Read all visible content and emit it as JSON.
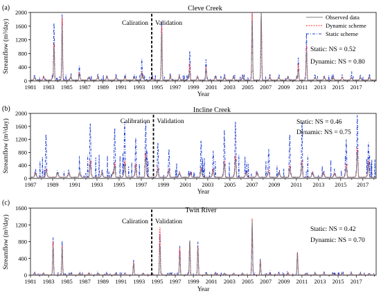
{
  "chart_data": [
    {
      "type": "line",
      "panel_letter": "(a)",
      "title": "Cleve Creek",
      "xlabel": "Year",
      "ylabel": "Streamflow (m³/day)",
      "ylim": [
        0,
        2000
      ],
      "yticks": [
        0,
        400,
        800,
        1200,
        1600,
        2000
      ],
      "xlim": [
        1981,
        2019.2
      ],
      "xticks": [
        1981,
        1983,
        1985,
        1987,
        1989,
        1991,
        1993,
        1995,
        1997,
        1999,
        2001,
        2003,
        2005,
        2007,
        2009,
        2011,
        2013,
        2015,
        2017
      ],
      "divider_year": 1994.4,
      "calibration_label": "Caliration",
      "validation_label": "Validation",
      "annotations": [
        "Static: NS = 0.52",
        "Dynamic: NS = 0.80"
      ],
      "legend": {
        "position": "top-right",
        "entries": [
          "Observed data",
          "Dynamic scheme",
          "Static scheme"
        ]
      },
      "base_flow": 40,
      "peaks": [
        {
          "x": 1983.6,
          "observed": 1000,
          "dynamic": 1120,
          "static": 1750
        },
        {
          "x": 1984.5,
          "observed": 1600,
          "dynamic": 1850,
          "static": 1950
        },
        {
          "x": 1986.4,
          "observed": 200,
          "dynamic": 260,
          "static": 450
        },
        {
          "x": 1993.3,
          "observed": 240,
          "dynamic": 280,
          "static": 650
        },
        {
          "x": 1995.5,
          "observed": 1400,
          "dynamic": 1600,
          "static": 1750
        },
        {
          "x": 1998.6,
          "observed": 300,
          "dynamic": 500,
          "static": 900
        },
        {
          "x": 2000.4,
          "observed": 350,
          "dynamic": 420,
          "static": 650
        },
        {
          "x": 2005.5,
          "observed": 1800,
          "dynamic": 2000,
          "static": 2000
        },
        {
          "x": 2006.5,
          "observed": 2000,
          "dynamic": 2000,
          "static": 2000
        },
        {
          "x": 2010.6,
          "observed": 350,
          "dynamic": 500,
          "static": 700
        },
        {
          "x": 2011.5,
          "observed": 900,
          "dynamic": 1050,
          "static": 1400
        }
      ],
      "colors": {
        "observed": "#7f7f7f",
        "dynamic": "#ff2a2a",
        "static": "#1f3fd6"
      }
    },
    {
      "type": "line",
      "panel_letter": "(b)",
      "title": "Incline Creek",
      "xlabel": "Year",
      "ylabel": "Streamflow (m³/day)",
      "ylim": [
        0,
        2000
      ],
      "yticks": [
        0,
        400,
        800,
        1200,
        1600,
        2000
      ],
      "xlim": [
        1987,
        2018.2
      ],
      "xticks": [
        1987,
        1989,
        1991,
        1993,
        1995,
        1997,
        1999,
        2001,
        2003,
        2005,
        2007,
        2009,
        2011,
        2013,
        2015,
        2017
      ],
      "divider_year": 1998.1,
      "calibration_label": "Calibration",
      "validation_label": "Validation",
      "annotations": [
        "Static: NS = 0.46",
        "Dynamic: NS = 0.75"
      ],
      "base_flow": 60,
      "peaks": [
        {
          "x": 1988.4,
          "observed": 250,
          "dynamic": 300,
          "static": 1400
        },
        {
          "x": 1992.4,
          "observed": 450,
          "dynamic": 550,
          "static": 1750
        },
        {
          "x": 1994.6,
          "observed": 400,
          "dynamic": 500,
          "static": 1600
        },
        {
          "x": 1995.5,
          "observed": 450,
          "dynamic": 550,
          "static": 1750
        },
        {
          "x": 1996.5,
          "observed": 350,
          "dynamic": 450,
          "static": 1250
        },
        {
          "x": 1997.4,
          "observed": 650,
          "dynamic": 800,
          "static": 1800
        },
        {
          "x": 1998.5,
          "observed": 280,
          "dynamic": 350,
          "static": 1100
        },
        {
          "x": 1999.5,
          "observed": 250,
          "dynamic": 300,
          "static": 900
        },
        {
          "x": 2002.4,
          "observed": 300,
          "dynamic": 350,
          "static": 1200
        },
        {
          "x": 2003.5,
          "observed": 250,
          "dynamic": 300,
          "static": 850
        },
        {
          "x": 2004.5,
          "observed": 450,
          "dynamic": 550,
          "static": 1500
        },
        {
          "x": 2005.5,
          "observed": 600,
          "dynamic": 700,
          "static": 1750
        },
        {
          "x": 2008.5,
          "observed": 200,
          "dynamic": 250,
          "static": 900
        },
        {
          "x": 2010.4,
          "observed": 300,
          "dynamic": 400,
          "static": 1400
        },
        {
          "x": 2011.5,
          "observed": 450,
          "dynamic": 550,
          "static": 1600
        },
        {
          "x": 2015.5,
          "observed": 350,
          "dynamic": 450,
          "static": 1200
        },
        {
          "x": 2016.5,
          "observed": 800,
          "dynamic": 950,
          "static": 1950
        },
        {
          "x": 2017.5,
          "observed": 450,
          "dynamic": 550,
          "static": 1100
        }
      ],
      "colors": {
        "observed": "#7f7f7f",
        "dynamic": "#ff2a2a",
        "static": "#1f3fd6"
      }
    },
    {
      "type": "line",
      "panel_letter": "(c)",
      "title": "Twin River",
      "xlabel": "Year",
      "ylabel": "Streamflow (m³/day)",
      "ylim": [
        0,
        1600
      ],
      "yticks": [
        0,
        400,
        800,
        1200,
        1600
      ],
      "xlim": [
        1981,
        2019.2
      ],
      "xticks": [
        1981,
        1983,
        1985,
        1987,
        1989,
        1991,
        1993,
        1995,
        1997,
        1999,
        2001,
        2003,
        2005,
        2007,
        2009,
        2011,
        2013,
        2015,
        2017
      ],
      "divider_year": 1994.4,
      "calibration_label": "Caliration",
      "validation_label": "Validation",
      "annotations": [
        "Static: NS = 0.42",
        "Dynamic: NS = 0.70"
      ],
      "base_flow": 15,
      "peaks": [
        {
          "x": 1983.5,
          "observed": 700,
          "dynamic": 800,
          "static": 900
        },
        {
          "x": 1984.5,
          "observed": 650,
          "dynamic": 700,
          "static": 820
        },
        {
          "x": 1992.4,
          "observed": 250,
          "dynamic": 300,
          "static": 350
        },
        {
          "x": 1995.3,
          "observed": 700,
          "dynamic": 1150,
          "static": 1000
        },
        {
          "x": 1997.5,
          "observed": 450,
          "dynamic": 650,
          "static": 700
        },
        {
          "x": 1998.6,
          "observed": 850,
          "dynamic": 800,
          "static": 850
        },
        {
          "x": 1999.5,
          "observed": 650,
          "dynamic": 700,
          "static": 800
        },
        {
          "x": 2005.5,
          "observed": 1300,
          "dynamic": 1350,
          "static": 1150
        },
        {
          "x": 2006.4,
          "observed": 300,
          "dynamic": 350,
          "static": 400
        },
        {
          "x": 2010.5,
          "observed": 500,
          "dynamic": 550,
          "static": 550
        }
      ],
      "colors": {
        "observed": "#7f7f7f",
        "dynamic": "#ff2a2a",
        "static": "#1f3fd6"
      }
    }
  ]
}
